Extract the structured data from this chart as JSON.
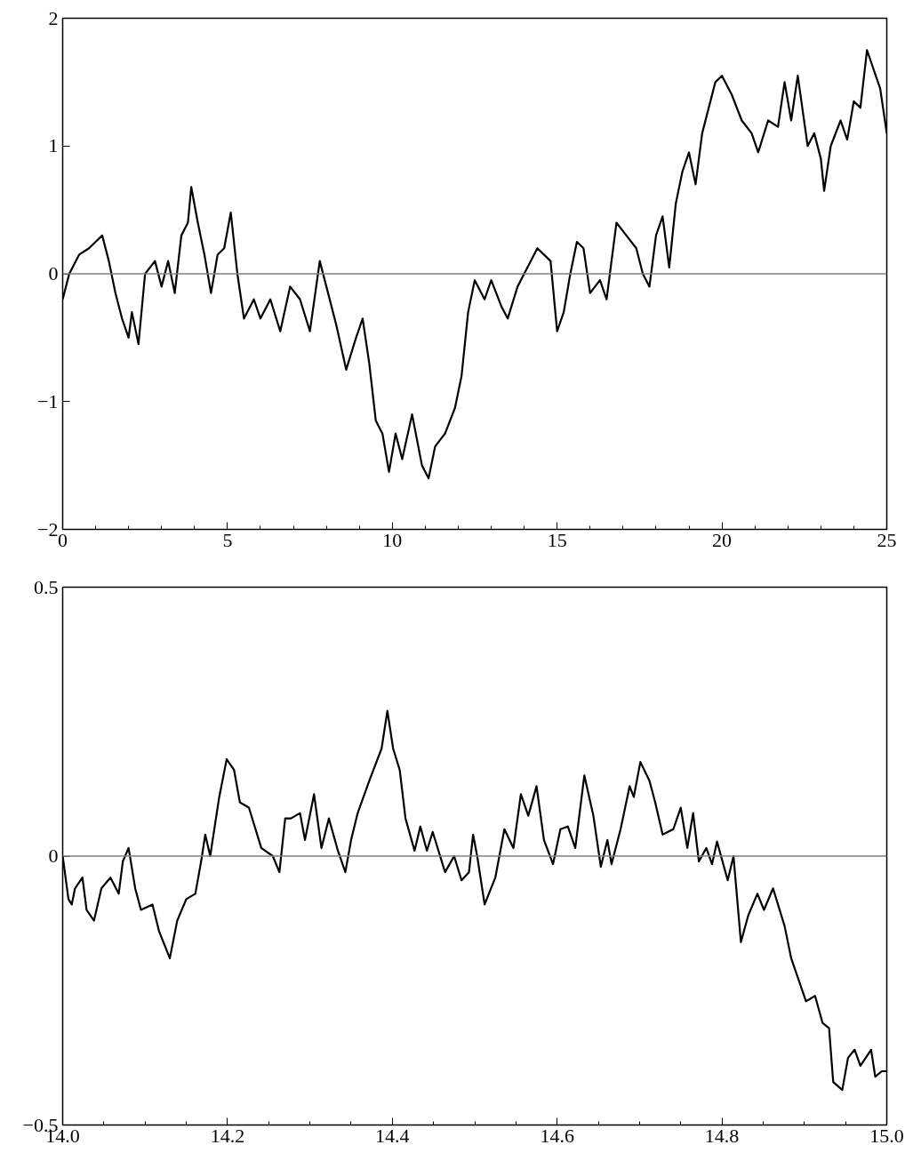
{
  "chart_data": [
    {
      "type": "line",
      "series": [
        {
          "color": "#000000",
          "x": [
            0,
            0.2,
            0.5,
            0.8,
            1.0,
            1.2,
            1.4,
            1.6,
            1.8,
            2.0,
            2.1,
            2.3,
            2.5,
            2.8,
            3.0,
            3.2,
            3.4,
            3.6,
            3.8,
            3.9,
            4.1,
            4.3,
            4.5,
            4.7,
            4.9,
            5.1,
            5.3,
            5.5,
            5.8,
            6.0,
            6.3,
            6.6,
            6.9,
            7.2,
            7.5,
            7.8,
            8.0,
            8.3,
            8.6,
            8.9,
            9.1,
            9.3,
            9.5,
            9.7,
            9.9,
            10.1,
            10.3,
            10.6,
            10.9,
            11.1,
            11.3,
            11.6,
            11.9,
            12.1,
            12.3,
            12.5,
            12.8,
            13.0,
            13.3,
            13.5,
            13.8,
            14.0,
            14.4,
            14.8,
            15.0,
            15.2,
            15.4,
            15.6,
            15.8,
            16.0,
            16.3,
            16.5,
            16.8,
            17.1,
            17.4,
            17.6,
            17.8,
            18.0,
            18.2,
            18.4,
            18.6,
            18.8,
            19.0,
            19.2,
            19.4,
            19.6,
            19.8,
            20.0,
            20.3,
            20.6,
            20.9,
            21.1,
            21.4,
            21.7,
            21.9,
            22.1,
            22.3,
            22.6,
            22.8,
            23.0,
            23.1,
            23.3,
            23.6,
            23.8,
            24.0,
            24.2,
            24.4,
            24.6,
            24.8,
            25.0
          ],
          "values": [
            -0.2,
            0.0,
            0.15,
            0.2,
            0.25,
            0.3,
            0.1,
            -0.15,
            -0.35,
            -0.5,
            -0.3,
            -0.55,
            0.0,
            0.1,
            -0.1,
            0.1,
            -0.15,
            0.3,
            0.4,
            0.68,
            0.4,
            0.15,
            -0.15,
            0.15,
            0.2,
            0.48,
            0.0,
            -0.35,
            -0.2,
            -0.35,
            -0.2,
            -0.45,
            -0.1,
            -0.2,
            -0.45,
            0.1,
            -0.1,
            -0.4,
            -0.75,
            -0.5,
            -0.35,
            -0.7,
            -1.15,
            -1.25,
            -1.55,
            -1.25,
            -1.45,
            -1.1,
            -1.5,
            -1.6,
            -1.35,
            -1.25,
            -1.05,
            -0.8,
            -0.3,
            -0.05,
            -0.2,
            -0.05,
            -0.25,
            -0.35,
            -0.1,
            0.0,
            0.2,
            0.1,
            -0.45,
            -0.3,
            0.0,
            0.25,
            0.2,
            -0.15,
            -0.05,
            -0.2,
            0.4,
            0.3,
            0.2,
            0.0,
            -0.1,
            0.3,
            0.45,
            0.05,
            0.55,
            0.8,
            0.95,
            0.7,
            1.1,
            1.3,
            1.5,
            1.55,
            1.4,
            1.2,
            1.1,
            0.95,
            1.2,
            1.15,
            1.5,
            1.2,
            1.55,
            1.0,
            1.1,
            0.9,
            0.65,
            1.0,
            1.2,
            1.05,
            1.35,
            1.3,
            1.75,
            1.6,
            1.45,
            1.1
          ]
        }
      ],
      "xlim": [
        0,
        25
      ],
      "ylim": [
        -2,
        2
      ],
      "xticks": [
        0,
        {
          "value": 1,
          "label": null
        },
        {
          "value": 2,
          "label": null
        },
        {
          "value": 3,
          "label": null
        },
        {
          "value": 4,
          "label": null
        },
        5,
        {
          "value": 6,
          "label": null
        },
        {
          "value": 7,
          "label": null
        },
        {
          "value": 8,
          "label": null
        },
        {
          "value": 9,
          "label": null
        },
        10,
        {
          "value": 11,
          "label": null
        },
        {
          "value": 12,
          "label": null
        },
        {
          "value": 13,
          "label": null
        },
        {
          "value": 14,
          "label": null
        },
        15,
        {
          "value": 16,
          "label": null
        },
        {
          "value": 17,
          "label": null
        },
        {
          "value": 18,
          "label": null
        },
        {
          "value": 19,
          "label": null
        },
        20,
        {
          "value": 21,
          "label": null
        },
        {
          "value": 22,
          "label": null
        },
        {
          "value": 23,
          "label": null
        },
        {
          "value": 24,
          "label": null
        },
        25
      ],
      "yticks": [
        {
          "value": -2,
          "label": "−2"
        },
        {
          "value": -1,
          "label": "−1"
        },
        0,
        1,
        2
      ],
      "ref_lines": [
        {
          "axis": "y",
          "value": 0,
          "color": "#808080"
        }
      ]
    },
    {
      "type": "line",
      "series": [
        {
          "color": "#000000",
          "x": [
            14.0,
            14.007,
            14.011,
            14.015,
            14.024,
            14.029,
            14.038,
            14.047,
            14.058,
            14.068,
            14.073,
            14.08,
            14.088,
            14.095,
            14.109,
            14.117,
            14.13,
            14.139,
            14.15,
            14.161,
            14.168,
            14.173,
            14.179,
            14.19,
            14.199,
            14.208,
            14.215,
            14.226,
            14.241,
            14.255,
            14.263,
            14.27,
            14.277,
            14.288,
            14.294,
            14.305,
            14.314,
            14.323,
            14.334,
            14.343,
            14.35,
            14.358,
            14.372,
            14.387,
            14.394,
            14.401,
            14.409,
            14.416,
            14.427,
            14.434,
            14.442,
            14.449,
            14.464,
            14.475,
            14.484,
            14.493,
            14.498,
            14.503,
            14.512,
            14.525,
            14.536,
            14.547,
            14.556,
            14.565,
            14.575,
            14.584,
            14.595,
            14.604,
            14.613,
            14.622,
            14.633,
            14.644,
            14.653,
            14.661,
            14.666,
            14.677,
            14.688,
            14.693,
            14.701,
            14.712,
            14.719,
            14.728,
            14.741,
            14.75,
            14.758,
            14.765,
            14.772,
            14.781,
            14.788,
            14.794,
            14.807,
            14.814,
            14.823,
            14.832,
            14.843,
            14.851,
            14.862,
            14.876,
            14.884,
            14.893,
            14.902,
            14.913,
            14.922,
            14.93,
            14.935,
            14.946,
            14.953,
            14.961,
            14.968,
            14.981,
            14.986,
            14.994,
            15.0
          ],
          "values": [
            0.0,
            -0.08,
            -0.09,
            -0.06,
            -0.04,
            -0.1,
            -0.12,
            -0.06,
            -0.04,
            -0.07,
            -0.01,
            0.015,
            -0.06,
            -0.1,
            -0.09,
            -0.14,
            -0.19,
            -0.12,
            -0.08,
            -0.07,
            -0.01,
            0.04,
            0.0,
            0.11,
            0.18,
            0.16,
            0.1,
            0.09,
            0.015,
            0.0,
            -0.03,
            0.07,
            0.07,
            0.08,
            0.03,
            0.115,
            0.015,
            0.07,
            0.01,
            -0.03,
            0.03,
            0.08,
            0.14,
            0.2,
            0.27,
            0.2,
            0.16,
            0.07,
            0.01,
            0.055,
            0.01,
            0.045,
            -0.03,
            0.0,
            -0.045,
            -0.03,
            0.04,
            0.0,
            -0.09,
            -0.04,
            0.05,
            0.015,
            0.115,
            0.075,
            0.13,
            0.03,
            -0.015,
            0.05,
            0.055,
            0.015,
            0.15,
            0.075,
            -0.02,
            0.03,
            -0.015,
            0.05,
            0.13,
            0.11,
            0.175,
            0.14,
            0.1,
            0.04,
            0.05,
            0.09,
            0.015,
            0.08,
            -0.01,
            0.015,
            -0.015,
            0.027,
            -0.045,
            0.0,
            -0.16,
            -0.11,
            -0.07,
            -0.1,
            -0.06,
            -0.13,
            -0.19,
            -0.23,
            -0.27,
            -0.26,
            -0.31,
            -0.32,
            -0.42,
            -0.435,
            -0.375,
            -0.36,
            -0.39,
            -0.36,
            -0.41,
            -0.4,
            -0.4
          ]
        }
      ],
      "xlim": [
        14,
        15
      ],
      "ylim": [
        -0.5,
        0.5
      ],
      "xticks": [
        {
          "value": 14.0,
          "label": "14.0"
        },
        {
          "value": 14.05,
          "label": null
        },
        {
          "value": 14.1,
          "label": null
        },
        {
          "value": 14.15,
          "label": null
        },
        {
          "value": 14.2,
          "label": "14.2"
        },
        {
          "value": 14.25,
          "label": null
        },
        {
          "value": 14.3,
          "label": null
        },
        {
          "value": 14.35,
          "label": null
        },
        {
          "value": 14.4,
          "label": "14.4"
        },
        {
          "value": 14.45,
          "label": null
        },
        {
          "value": 14.5,
          "label": null
        },
        {
          "value": 14.55,
          "label": null
        },
        {
          "value": 14.6,
          "label": "14.6"
        },
        {
          "value": 14.65,
          "label": null
        },
        {
          "value": 14.7,
          "label": null
        },
        {
          "value": 14.75,
          "label": null
        },
        {
          "value": 14.8,
          "label": "14.8"
        },
        {
          "value": 14.85,
          "label": null
        },
        {
          "value": 14.9,
          "label": null
        },
        {
          "value": 14.95,
          "label": null
        },
        {
          "value": 15.0,
          "label": "15.0"
        }
      ],
      "yticks": [
        {
          "value": -0.5,
          "label": "−0.5"
        },
        0,
        0.5
      ],
      "ref_lines": [
        {
          "axis": "y",
          "value": 0,
          "color": "#808080"
        }
      ]
    }
  ]
}
